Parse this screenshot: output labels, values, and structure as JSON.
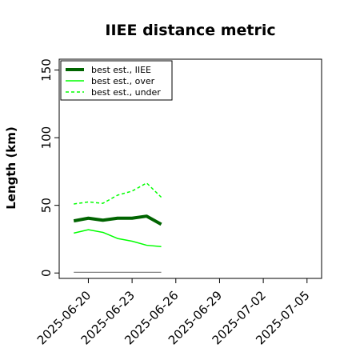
{
  "chart_data": {
    "type": "line",
    "title": "IIEE distance metric",
    "xlabel": "",
    "ylabel": "Length (km)",
    "xlim": [
      "2025-06-18",
      "2025-07-06"
    ],
    "ylim": [
      -4,
      158
    ],
    "yticks": [
      0,
      50,
      100,
      150
    ],
    "xticks": [
      "2025-06-20",
      "2025-06-23",
      "2025-06-26",
      "2025-06-29",
      "2025-07-02",
      "2025-07-05"
    ],
    "x": [
      "2025-06-19",
      "2025-06-20",
      "2025-06-21",
      "2025-06-22",
      "2025-06-23",
      "2025-06-24",
      "2025-06-25"
    ],
    "series": [
      {
        "name": "best est., IIEE",
        "color": "#006400",
        "style": "solid-thick",
        "values": [
          38.5,
          40.5,
          39.0,
          40.5,
          40.5,
          42.0,
          36.0
        ]
      },
      {
        "name": "best est., over",
        "color": "#00ff00",
        "style": "solid",
        "values": [
          29.5,
          32.0,
          30.0,
          25.5,
          23.5,
          20.5,
          19.5
        ]
      },
      {
        "name": "best est., under",
        "color": "#00ff00",
        "style": "dashed",
        "values": [
          51.0,
          52.5,
          51.5,
          57.5,
          60.5,
          66.5,
          56.0
        ]
      },
      {
        "name": "",
        "color": "#808080",
        "style": "solid-thin",
        "values": [
          0.5,
          0.5,
          0.5,
          0.5,
          0.5,
          0.5,
          0.5
        ]
      }
    ],
    "legend_position": "top-left",
    "grid": false
  }
}
